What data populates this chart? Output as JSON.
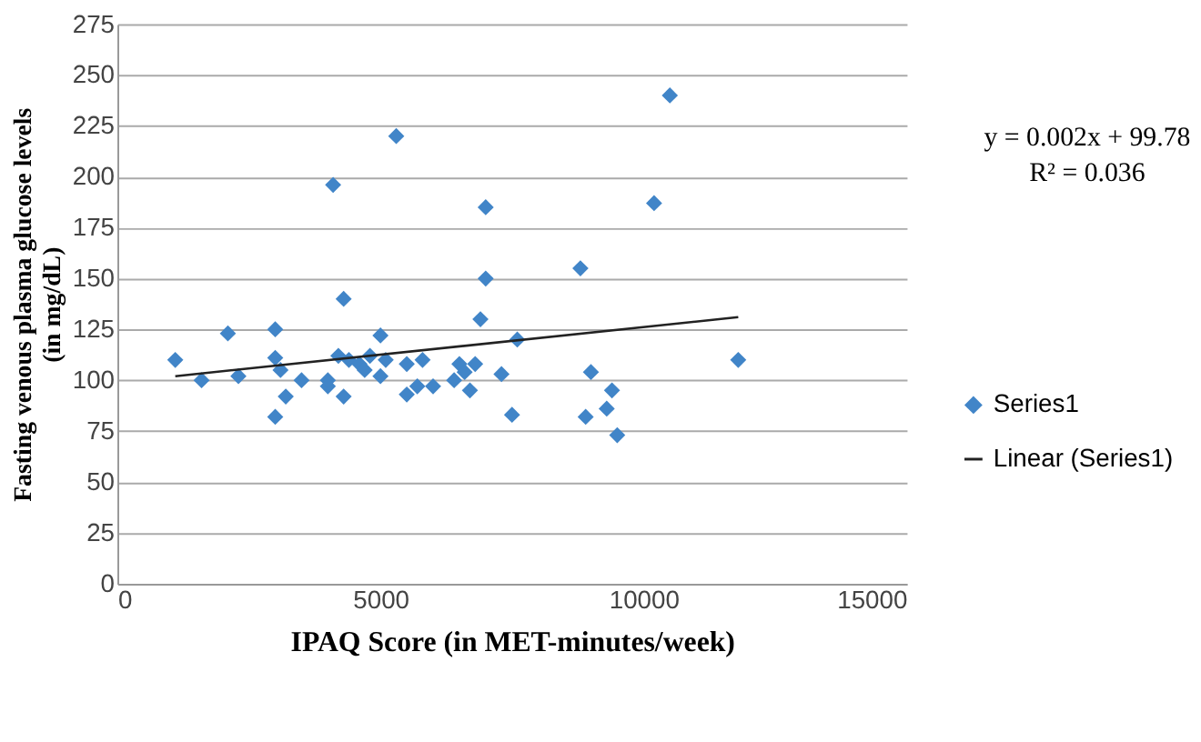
{
  "chart_data": {
    "type": "scatter",
    "xlabel": "IPAQ Score (in MET-minutes/week)",
    "ylabel": "Fasting venous plasma glucose levels (in mg/dL)",
    "xlim": [
      0,
      15000
    ],
    "xticks": [
      0,
      5000,
      10000,
      15000
    ],
    "ylim": [
      0,
      275
    ],
    "yticks": [
      0,
      25,
      50,
      75,
      100,
      125,
      150,
      175,
      200,
      225,
      250,
      275
    ],
    "grid": "y",
    "legend": "right",
    "marker": "diamond",
    "annotations": [
      "y = 0.002x + 99.78",
      "R² = 0.036"
    ],
    "series": [
      {
        "name": "Series1",
        "color": "#4185c8",
        "x": [
          1100,
          1600,
          2100,
          2300,
          3000,
          3000,
          3000,
          3100,
          3200,
          3500,
          4000,
          4000,
          4100,
          4200,
          4300,
          4300,
          4400,
          4600,
          4700,
          4800,
          5000,
          5000,
          5100,
          5300,
          5500,
          5500,
          5700,
          5800,
          6000,
          6400,
          6500,
          6600,
          6700,
          6800,
          6900,
          7000,
          7000,
          7300,
          7500,
          7600,
          8800,
          8900,
          9000,
          9300,
          9400,
          9500,
          10200,
          10500,
          11800
        ],
        "values": [
          110,
          100,
          123,
          102,
          125,
          111,
          82,
          105,
          92,
          100,
          97,
          100,
          196,
          112,
          140,
          92,
          110,
          108,
          105,
          112,
          122,
          102,
          110,
          220,
          108,
          93,
          97,
          110,
          97,
          100,
          108,
          104,
          95,
          108,
          130,
          150,
          185,
          103,
          83,
          120,
          155,
          82,
          104,
          86,
          95,
          73,
          187,
          240,
          110
        ]
      },
      {
        "name": "Linear (Series1)",
        "type": "line",
        "color": "#222222",
        "marker": "none",
        "line_style": "solid",
        "x": [
          1100,
          11800
        ],
        "values": [
          102,
          131
        ]
      }
    ]
  }
}
